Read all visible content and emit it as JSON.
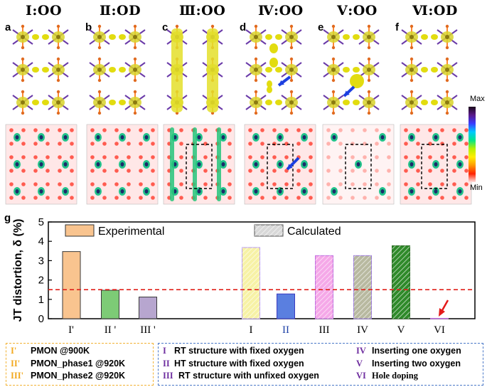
{
  "panel_columns": [
    {
      "letter": "a",
      "title": "Ⅰ:OO"
    },
    {
      "letter": "b",
      "title": "Ⅱ:OD"
    },
    {
      "letter": "c",
      "title": "Ⅲ:OO"
    },
    {
      "letter": "d",
      "title": "Ⅳ:OO"
    },
    {
      "letter": "e",
      "title": "Ⅴ:OO"
    },
    {
      "letter": "f",
      "title": "Ⅵ:OD"
    }
  ],
  "colorbar": {
    "max_label": "Max",
    "min_label": "Min",
    "colors": [
      "#1a0a1a",
      "#5a1a8a",
      "#3a3aff",
      "#00c8ff",
      "#00e68c",
      "#b4f000",
      "#ffee00",
      "#ff9900",
      "#ff2200",
      "#ffe0e0"
    ]
  },
  "chart_data": {
    "panel_letter": "g",
    "type": "bar",
    "ylabel": "JT distortion, δ (%)",
    "ylim": [
      0,
      5
    ],
    "yticks": [
      0,
      1,
      2,
      3,
      4,
      5
    ],
    "threshold": 1.5,
    "legend": {
      "experimental": "Experimental",
      "calculated": "Calculated"
    },
    "categories": [
      "I'",
      "II '",
      "III '",
      "I",
      "II",
      "III",
      "IV",
      "V",
      "VI"
    ],
    "values": [
      3.47,
      1.47,
      1.12,
      3.68,
      1.28,
      3.26,
      3.26,
      3.77,
      0.02
    ],
    "kinds": [
      "exp",
      "exp",
      "exp",
      "calc",
      "calc",
      "calc",
      "calc",
      "calc",
      "calc"
    ],
    "colors": [
      "#f9c48f",
      "#7dcb76",
      "#b7a6cf",
      "#f7f2a6",
      "#5a7fe0",
      "#f5a8e8",
      "#b8b9a0",
      "#2f8a2a",
      "#e6b8e6"
    ],
    "edge_colors": [
      "#3a3a3a",
      "#3a3a3a",
      "#3a3a3a",
      "#b99cf0",
      "#3a3ac0",
      "#c070e0",
      "#9a7ad8",
      "#2a6a22",
      "#c070e0"
    ],
    "hatched": [
      false,
      false,
      false,
      true,
      false,
      true,
      true,
      true,
      false
    ],
    "tick_colors": [
      "#000",
      "#000",
      "#000",
      "#000",
      "#1c3fa6",
      "#000",
      "#000",
      "#000",
      "#000"
    ]
  },
  "legend_left": {
    "items": [
      {
        "mark": "I'",
        "text": "PMON @900K"
      },
      {
        "mark": "II'",
        "text": "PMON_phase1 @920K"
      },
      {
        "mark": "III'",
        "text": "PMON_phase2 @920K"
      }
    ]
  },
  "legend_right": {
    "items": [
      {
        "mark": "I",
        "text": "RT structure with fixed oxygen",
        "color": "#7030a0"
      },
      {
        "mark": "II",
        "text": "HT structure with fixed oxygen",
        "color": "#7030a0"
      },
      {
        "mark": "III",
        "text": "RT structure with unfixed oxygen",
        "color": "#7030a0"
      },
      {
        "mark": "IV",
        "text": "Inserting one oxygen",
        "color": "#7030a0"
      },
      {
        "mark": "V",
        "text": "Inserting two oxygen",
        "color": "#7030a0"
      },
      {
        "mark": "VI",
        "text": "Hole doping",
        "color": "#7030a0"
      }
    ]
  }
}
